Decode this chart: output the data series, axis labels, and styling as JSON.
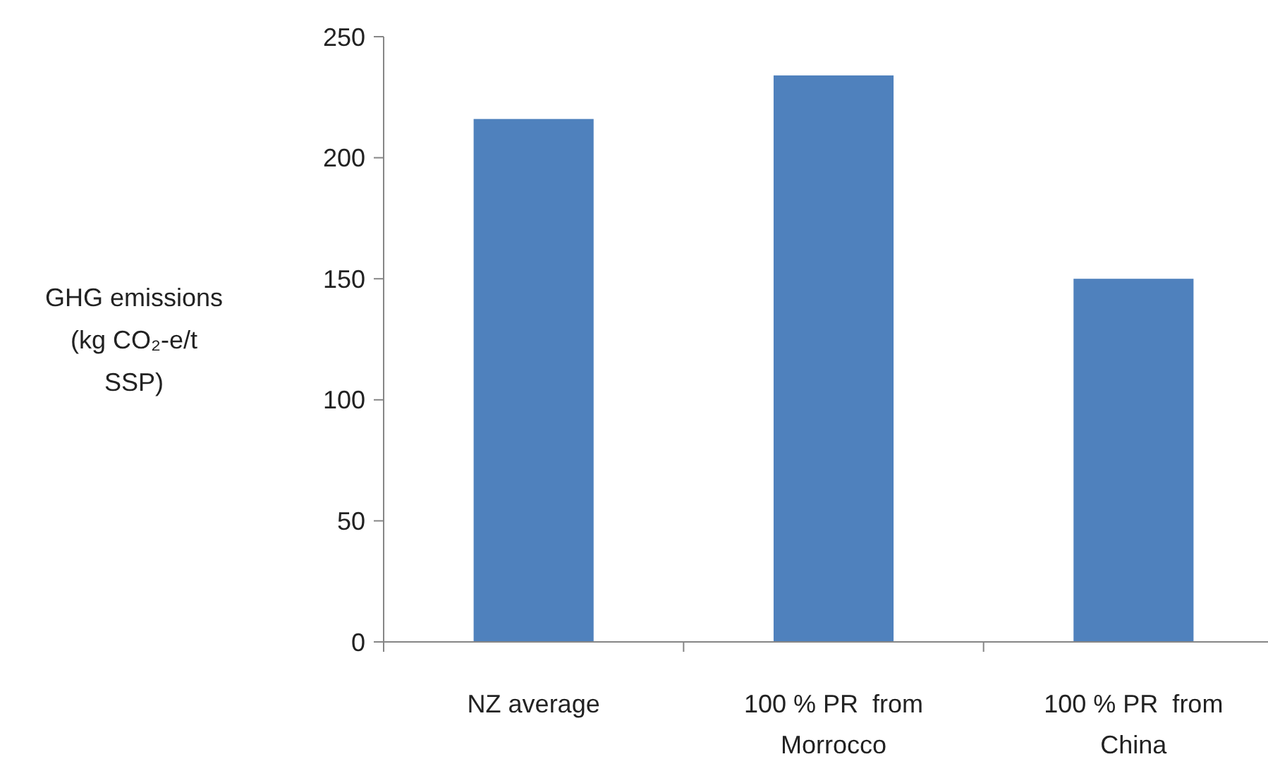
{
  "chart_data": {
    "type": "bar",
    "ylabel": "GHG emissions (kg CO₂-e/t SSP)",
    "categories": [
      "NZ average",
      "100 % PR  from Morrocco",
      "100 % PR  from China"
    ],
    "values": [
      216,
      234,
      150
    ],
    "color": "#4f81bd",
    "ylim": [
      0,
      250
    ],
    "yticks": [
      0,
      50,
      100,
      150,
      200,
      250
    ]
  }
}
